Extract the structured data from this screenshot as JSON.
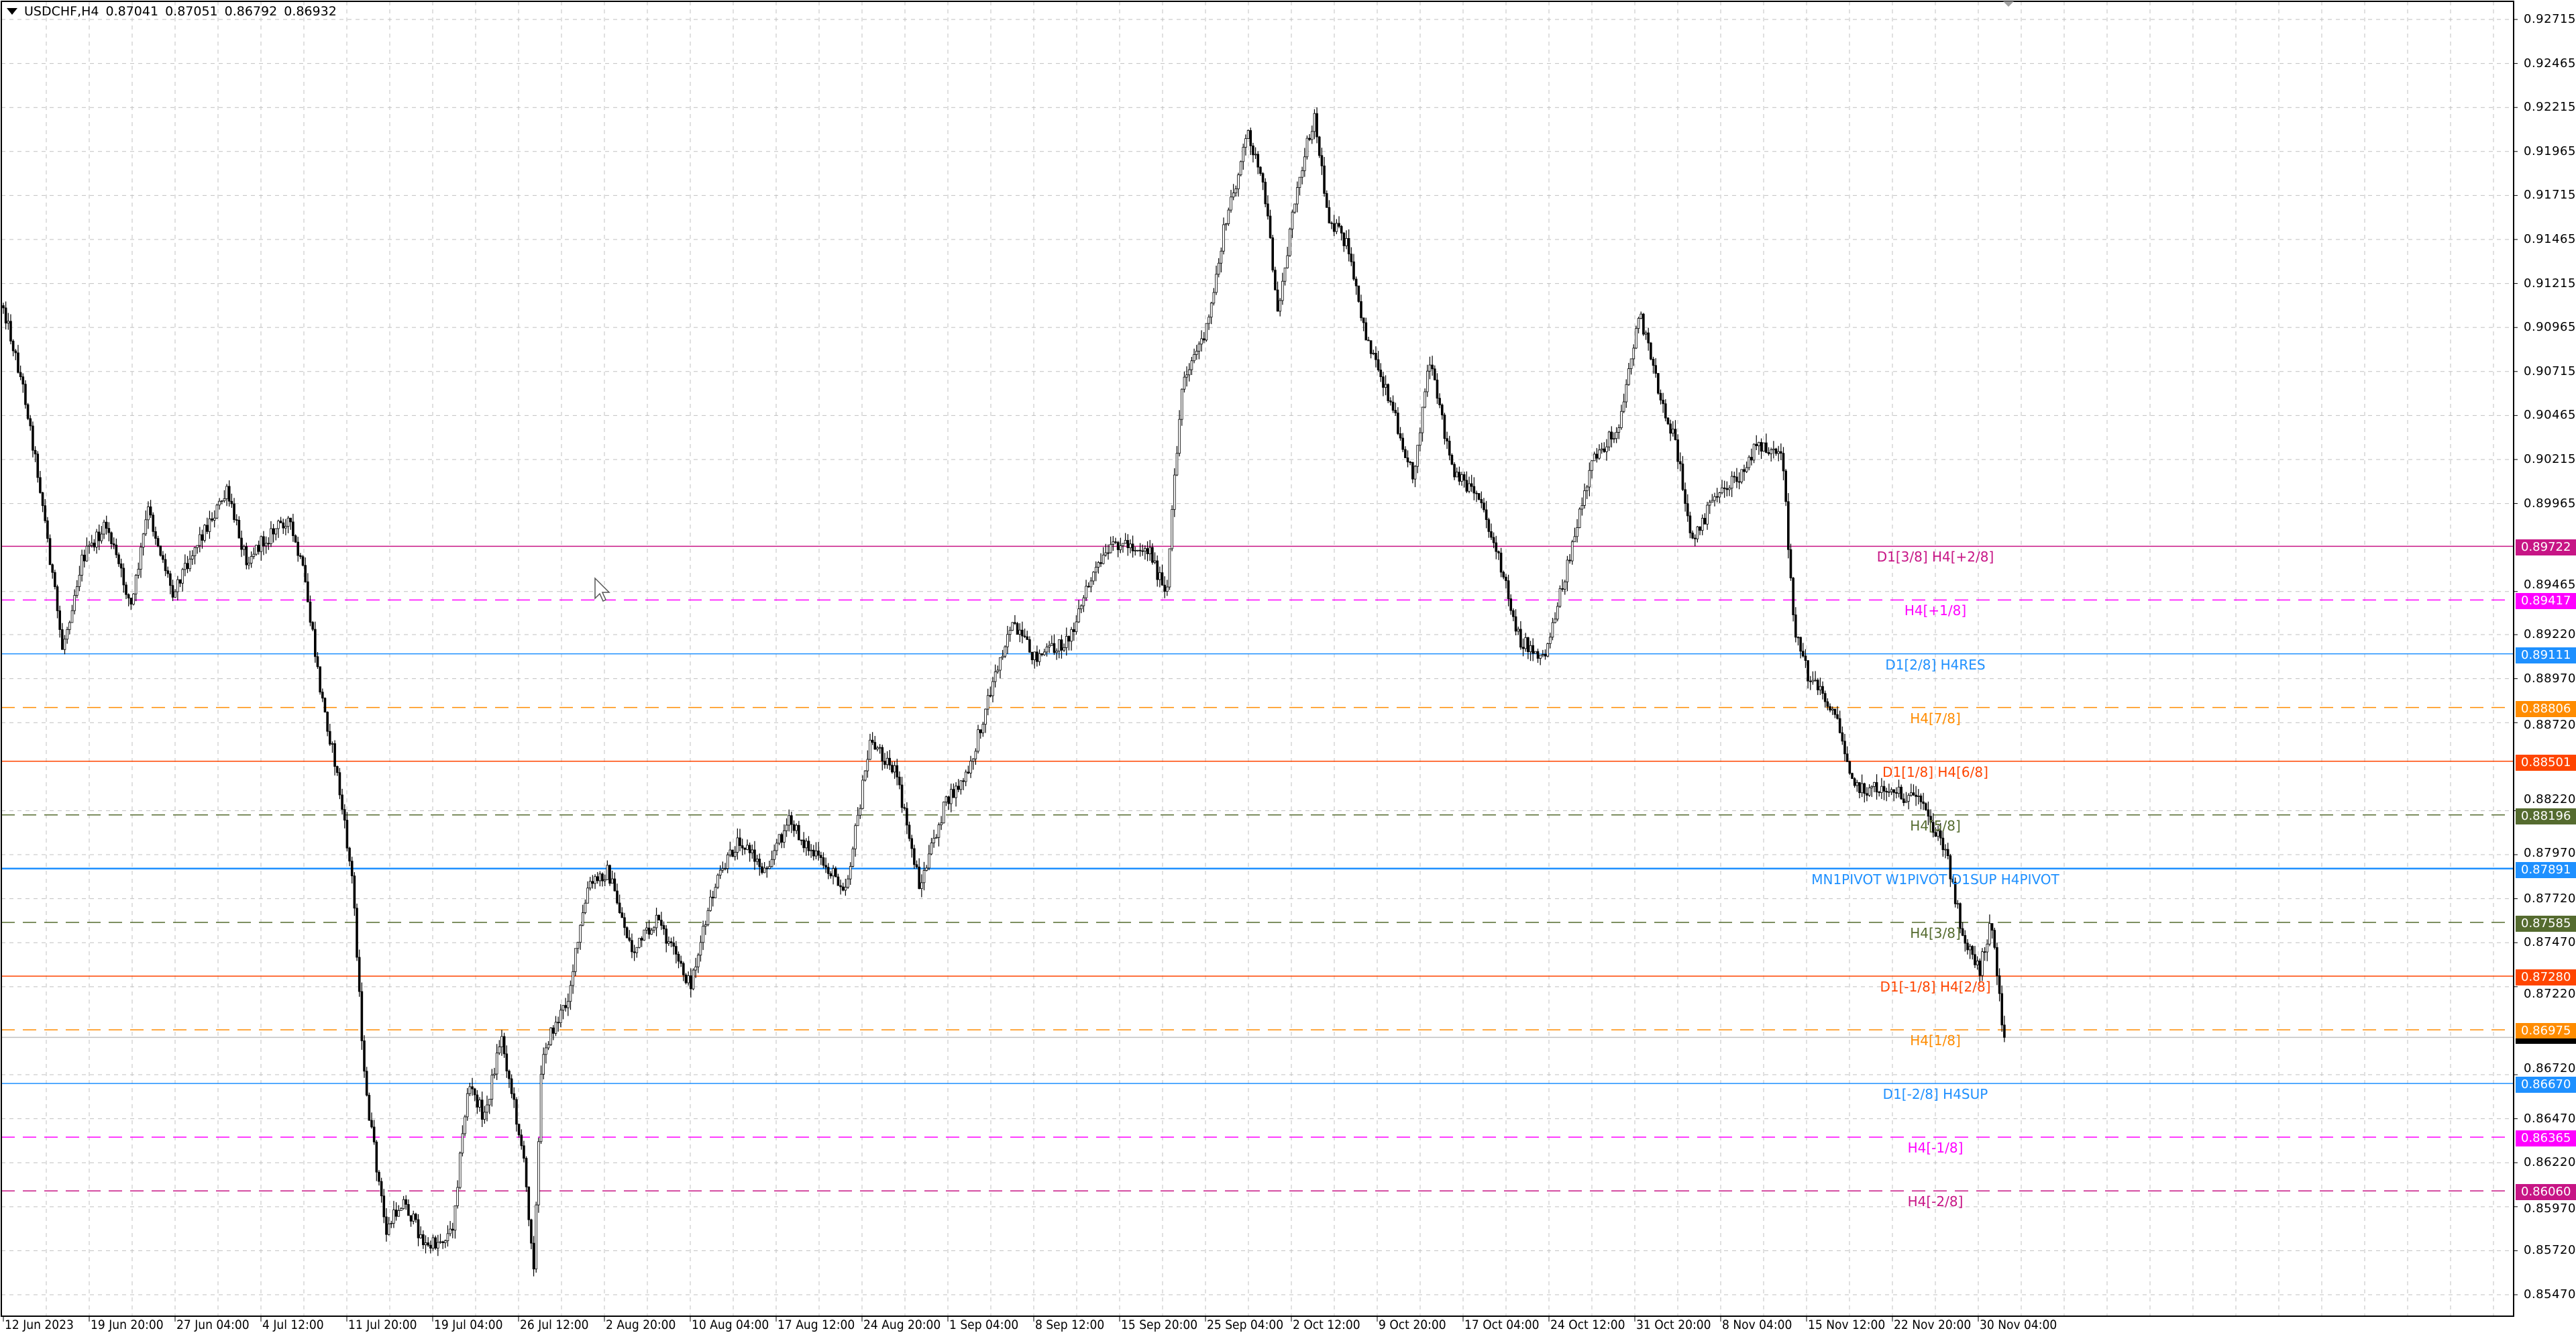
{
  "header": {
    "symbol_timeframe": "USDCHF,H4",
    "open": "0.87041",
    "high": "0.87051",
    "low": "0.86792",
    "close": "0.86932"
  },
  "price_axis": {
    "range": [
      0.8535,
      0.9283
    ],
    "ticks": [
      "0.92715",
      "0.92465",
      "0.92215",
      "0.91965",
      "0.91715",
      "0.91465",
      "0.91215",
      "0.90965",
      "0.90715",
      "0.90465",
      "0.90215",
      "0.89965",
      "0.89465",
      "0.89220",
      "0.88970",
      "0.88720",
      "0.88220",
      "0.87970",
      "0.87720",
      "0.87470",
      "0.87220",
      "0.86720",
      "0.86470",
      "0.86220",
      "0.85970",
      "0.85720",
      "0.85470"
    ]
  },
  "time_axis": {
    "labels": [
      "12 Jun 2023",
      "19 Jun 20:00",
      "27 Jun 04:00",
      "4 Jul 12:00",
      "11 Jul 20:00",
      "19 Jul 04:00",
      "26 Jul 12:00",
      "2 Aug 20:00",
      "10 Aug 04:00",
      "17 Aug 12:00",
      "24 Aug 20:00",
      "1 Sep 04:00",
      "8 Sep 12:00",
      "15 Sep 20:00",
      "25 Sep 04:00",
      "2 Oct 12:00",
      "9 Oct 20:00",
      "17 Oct 04:00",
      "24 Oct 12:00",
      "31 Oct 20:00",
      "8 Nov 04:00",
      "15 Nov 12:00",
      "22 Nov 20:00",
      "30 Nov 04:00"
    ]
  },
  "levels": [
    {
      "price": "0.89722",
      "label": "D1[3/8] H4[+2/8]",
      "color": "#C71585",
      "style": "solid"
    },
    {
      "price": "0.89417",
      "label": "H4[+1/8]",
      "color": "#FF00FF",
      "style": "dashed"
    },
    {
      "price": "0.89111",
      "label": "D1[2/8] H4RES",
      "color": "#1E90FF",
      "style": "solid"
    },
    {
      "price": "0.88806",
      "label": "H4[7/8]",
      "color": "#FF8C00",
      "style": "dashed"
    },
    {
      "price": "0.88501",
      "label": "D1[1/8] H4[6/8]",
      "color": "#FF4500",
      "style": "solid"
    },
    {
      "price": "0.88196",
      "label": "H4[5/8]",
      "color": "#556B2F",
      "style": "dashed"
    },
    {
      "price": "0.87891",
      "label": "MN1PIVOT W1PIVOT D1SUP H4PIVOT",
      "color": "#1E90FF",
      "style": "solid"
    },
    {
      "price": "0.87585",
      "label": "H4[3/8]",
      "color": "#556B2F",
      "style": "dashed"
    },
    {
      "price": "0.87280",
      "label": "D1[-1/8] H4[2/8]",
      "color": "#FF4500",
      "style": "solid"
    },
    {
      "price": "0.86975",
      "label": "H4[1/8]",
      "color": "#FF8C00",
      "style": "dashed"
    },
    {
      "price": "0.86670",
      "label": "D1[-2/8] H4SUP",
      "color": "#1E90FF",
      "style": "solid"
    },
    {
      "price": "0.86365",
      "label": "H4[-1/8]",
      "color": "#FF00FF",
      "style": "dashed"
    },
    {
      "price": "0.86060",
      "label": "H4[-2/8]",
      "color": "#C71585",
      "style": "dashed"
    }
  ],
  "colors": {
    "bull_fill": "#FFFFFF",
    "bear_fill": "#000000",
    "candle_outline": "#000000",
    "grid": "#C0C0C0",
    "current_price_line": "#C0C0C0"
  }
}
